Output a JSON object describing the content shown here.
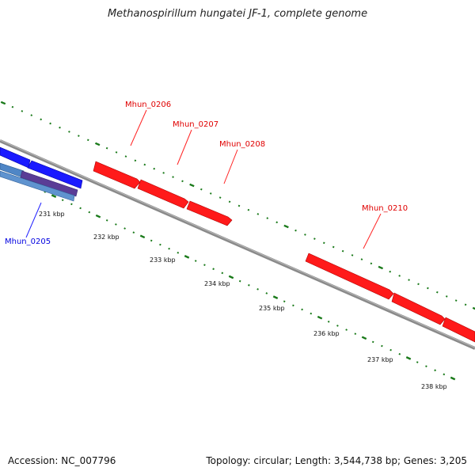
{
  "header": {
    "title": "Methanospirillum hungatei JF-1, complete genome"
  },
  "footer": {
    "accession": "Accession: NC_007796",
    "summary": "Topology: circular; Length: 3,544,738 bp; Genes: 3,205"
  },
  "colors": {
    "forward_gene": "#ff0000",
    "reverse_gene": "#0000ff",
    "backbone": "#888888",
    "ticks": "#1a7a1a"
  },
  "genes": [
    {
      "id": "g206",
      "label": "Mhun_0206",
      "strand": "forward",
      "color": "#ff0000"
    },
    {
      "id": "g207",
      "label": "Mhun_0207",
      "strand": "forward",
      "color": "#ff0000"
    },
    {
      "id": "g208",
      "label": "Mhun_0208",
      "strand": "forward",
      "color": "#ff0000"
    },
    {
      "id": "g210",
      "label": "Mhun_0210",
      "strand": "forward",
      "color": "#ff0000"
    },
    {
      "id": "g205",
      "label": "Mhun_0205",
      "strand": "reverse",
      "color": "#0000ff"
    }
  ],
  "kbp_ticks": [
    "231 kbp",
    "232 kbp",
    "233 kbp",
    "234 kbp",
    "235 kbp",
    "236 kbp",
    "237 kbp",
    "238 kbp"
  ]
}
